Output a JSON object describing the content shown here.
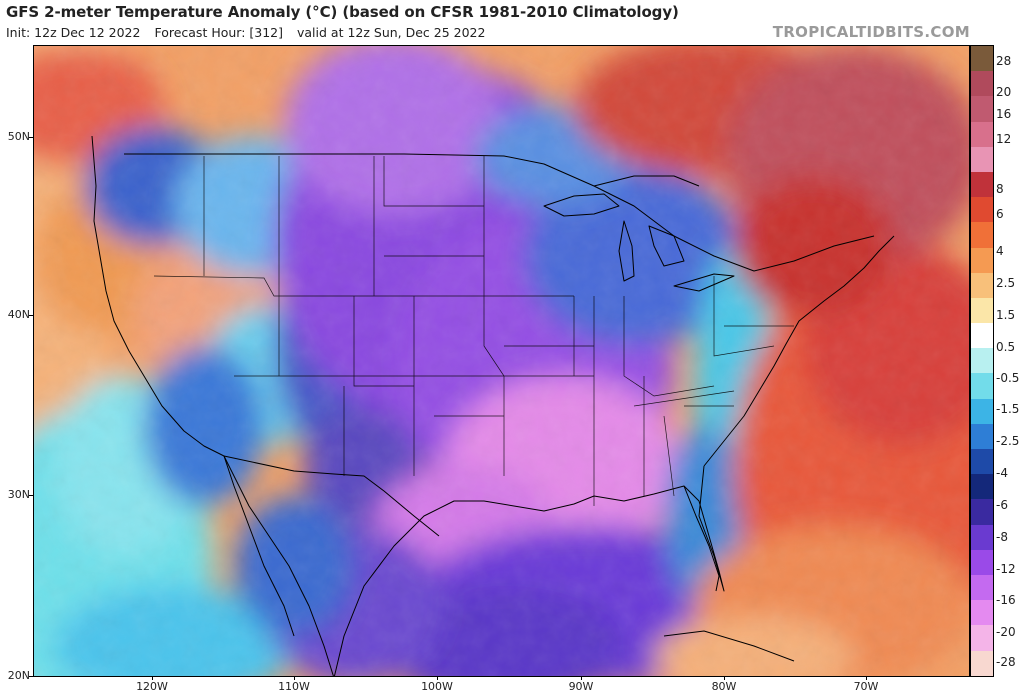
{
  "header": {
    "title": "GFS 2-meter Temperature Anomaly (°C) (based on CFSR 1981-2010 Climatology)",
    "init": "Init: 12z Dec 12 2022",
    "forecast_hour": "Forecast Hour: [312]",
    "valid": "valid at 12z Sun, Dec 25 2022",
    "brand": "TROPICALTIDBITS.COM"
  },
  "axes": {
    "lat_labels": [
      "50N",
      "40N",
      "30N",
      "20N"
    ],
    "lon_labels": [
      "120W",
      "110W",
      "100W",
      "90W",
      "80W",
      "70W"
    ]
  },
  "colorbar": {
    "labels": [
      "28",
      "20",
      "16",
      "12",
      "8",
      "6",
      "4",
      "2.5",
      "1.5",
      "0.5",
      "-0.5",
      "-1.5",
      "-2.5",
      "-4",
      "-6",
      "-8",
      "-12",
      "-16",
      "-20",
      "-28"
    ],
    "colors": [
      "#7a5a3a",
      "#b04a5c",
      "#c05a70",
      "#d8708c",
      "#e894b4",
      "#c0323a",
      "#e04a30",
      "#f07038",
      "#f59a52",
      "#f8c07a",
      "#fbe6a8",
      "#ffffff",
      "#b8f0f0",
      "#72dcea",
      "#3cb4e6",
      "#2e7ed6",
      "#1e4aa8",
      "#14287a",
      "#3a2aa0",
      "#6a3ad0",
      "#9a4ae8",
      "#c46af0",
      "#e48af0",
      "#f4b4e8",
      "#f8d8d0"
    ]
  }
}
